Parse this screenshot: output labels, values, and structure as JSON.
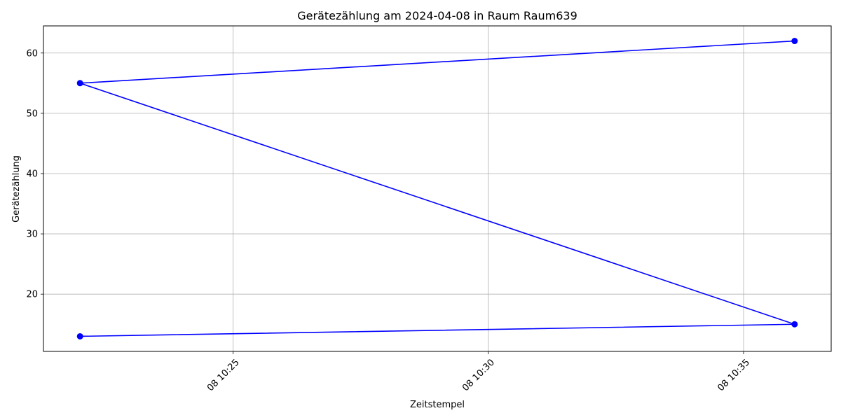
{
  "chart_data": {
    "type": "line",
    "title": "Gerätezählung am 2024-04-08 in Raum Raum639",
    "xlabel": "Zeitstempel",
    "ylabel": "Gerätezählung",
    "x_axis_type": "time",
    "x_ticks": [
      {
        "value": "2024-04-08 10:25",
        "label": "08 10:25"
      },
      {
        "value": "2024-04-08 10:30",
        "label": "08 10:30"
      },
      {
        "value": "2024-04-08 10:35",
        "label": "08 10:35"
      }
    ],
    "y_ticks": [
      20,
      30,
      40,
      50,
      60
    ],
    "xlim": [
      "2024-04-08 10:21:17",
      "2024-04-08 10:36:43"
    ],
    "ylim": [
      10.5,
      64.5
    ],
    "grid": true,
    "legend": "none",
    "series": [
      {
        "color": "#0000ff",
        "marker": "circle",
        "points": [
          {
            "x": "2024-04-08 10:22:00",
            "y": 13
          },
          {
            "x": "2024-04-08 10:36:00",
            "y": 15
          },
          {
            "x": "2024-04-08 10:22:00",
            "y": 55
          },
          {
            "x": "2024-04-08 10:36:00",
            "y": 62
          }
        ]
      }
    ]
  }
}
